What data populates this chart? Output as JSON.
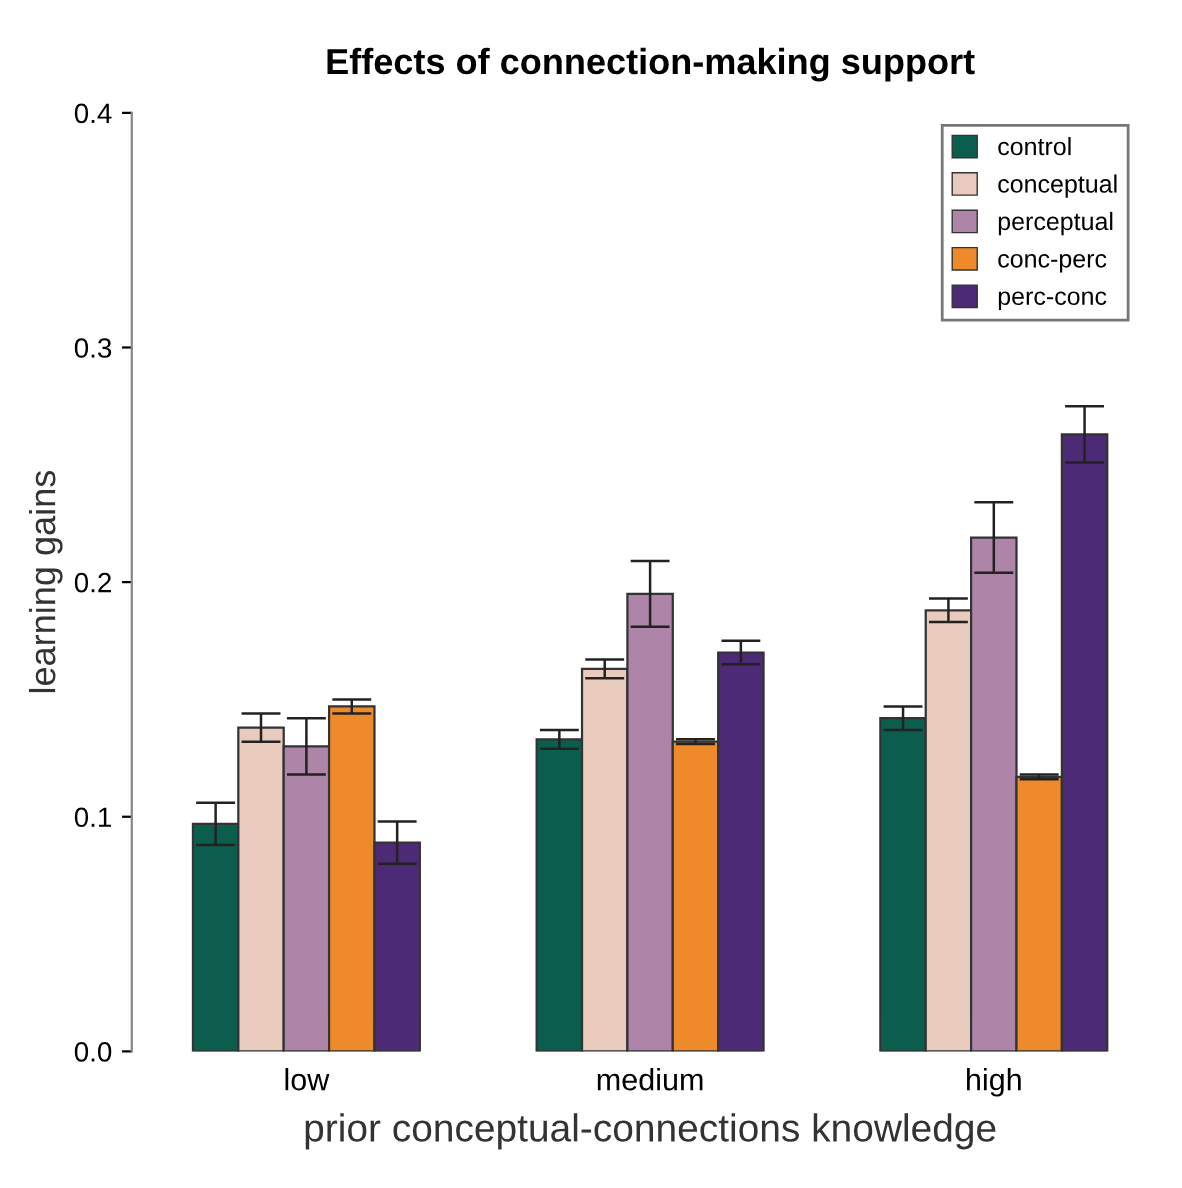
{
  "chart_data": {
    "type": "bar",
    "title": "Effects of connection-making support",
    "xlabel": "prior conceptual-connections knowledge",
    "ylabel": "learning gains",
    "categories": [
      "low",
      "medium",
      "high"
    ],
    "series": [
      {
        "name": "control",
        "color": "#0b5e4e",
        "values": [
          0.097,
          0.133,
          0.142
        ],
        "errors": [
          0.009,
          0.004,
          0.005
        ]
      },
      {
        "name": "conceptual",
        "color": "#e8cbbd",
        "values": [
          0.138,
          0.163,
          0.188
        ],
        "errors": [
          0.006,
          0.004,
          0.005
        ]
      },
      {
        "name": "perceptual",
        "color": "#ae84a8",
        "values": [
          0.13,
          0.195,
          0.219
        ],
        "errors": [
          0.012,
          0.014,
          0.015
        ]
      },
      {
        "name": "conc-perc",
        "color": "#ee8a2a",
        "values": [
          0.147,
          0.132,
          0.117
        ],
        "errors": [
          0.003,
          0.001,
          0.001
        ]
      },
      {
        "name": "perc-conc",
        "color": "#4d2a76",
        "values": [
          0.089,
          0.17,
          0.263
        ],
        "errors": [
          0.009,
          0.005,
          0.012
        ]
      }
    ],
    "ylim": [
      0,
      0.4
    ],
    "yticks": [
      {
        "value": 0,
        "label": "0.0"
      },
      0.1,
      0.2,
      0.3,
      0.4
    ],
    "grid": false,
    "legend": "top right"
  }
}
